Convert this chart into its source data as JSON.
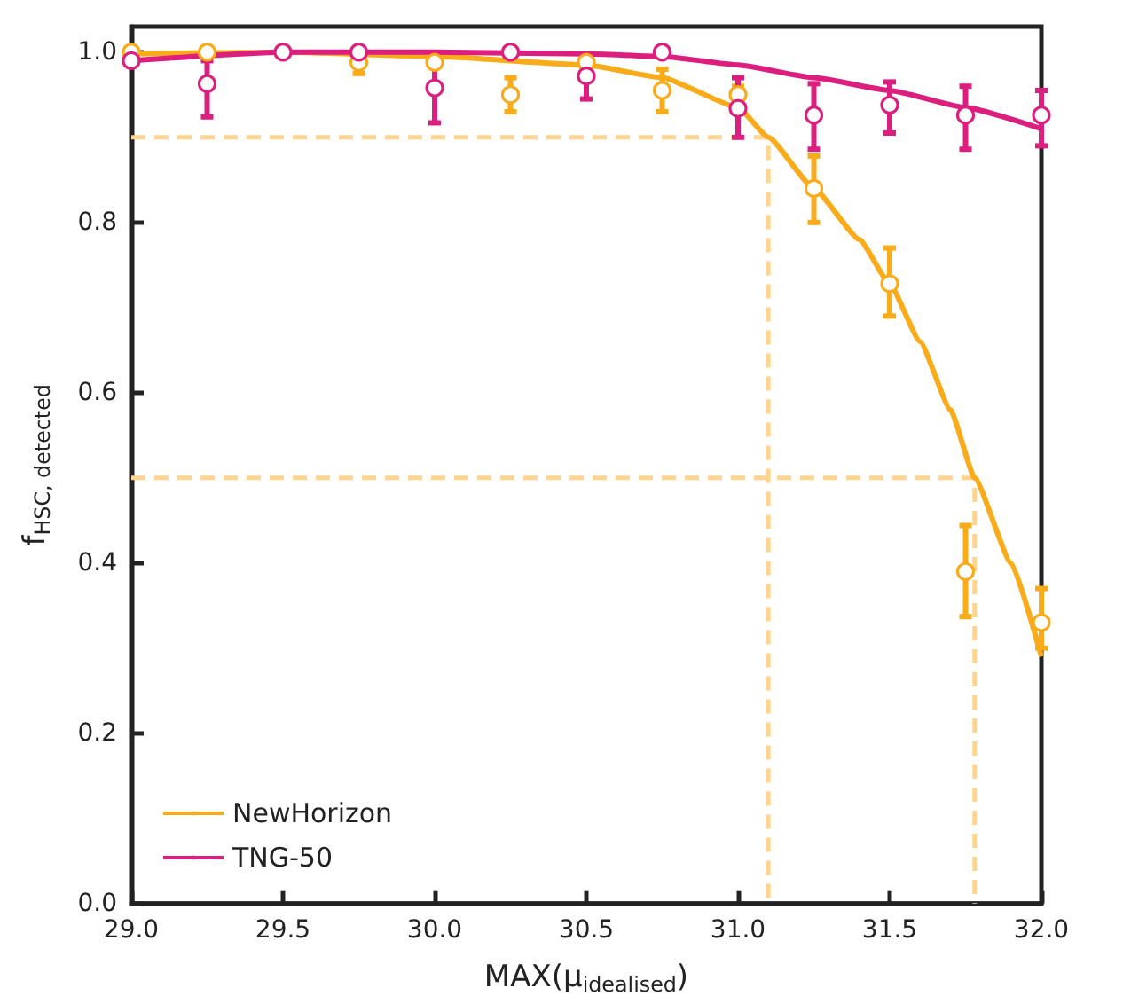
{
  "chart_data": {
    "type": "scatter",
    "xlabel": "MAX(μ$_{idealised}$)",
    "ylabel": "f$_{HSC, detected}$",
    "xlim": [
      29,
      32
    ],
    "ylim": [
      0,
      1.03
    ],
    "xticks": [
      {
        "value": 29,
        "label": "29.0"
      },
      {
        "value": 29.5,
        "label": "29.5"
      },
      {
        "value": 30,
        "label": "30.0"
      },
      {
        "value": 30.5,
        "label": "30.5"
      },
      {
        "value": 31,
        "label": "31.0"
      },
      {
        "value": 31.5,
        "label": "31.5"
      },
      {
        "value": 32,
        "label": "32.0"
      }
    ],
    "yticks": [
      {
        "value": 0,
        "label": "0.0"
      },
      {
        "value": 0.2,
        "label": "0.2"
      },
      {
        "value": 0.4,
        "label": "0.4"
      },
      {
        "value": 0.6,
        "label": "0.6"
      },
      {
        "value": 0.8,
        "label": "0.8"
      },
      {
        "value": 1,
        "label": "1.0"
      }
    ],
    "grid": false,
    "legend": "bottom left",
    "marker": "circle",
    "series": [
      {
        "type": "line",
        "line_style": "dashed",
        "marker": "none",
        "color": "#fed490",
        "x": [
          29,
          31.1,
          31.1
        ],
        "values": [
          0.9,
          0.9,
          0
        ]
      },
      {
        "type": "line",
        "line_style": "dashed",
        "marker": "none",
        "color": "#fed490",
        "x": [
          29,
          31.78,
          31.78
        ],
        "values": [
          0.5,
          0.5,
          0
        ]
      },
      {
        "type": "line",
        "name": "NewHorizon",
        "line_style": "solid",
        "marker": "none",
        "color": "#f9ab1a",
        "x": [
          29,
          29.5,
          30,
          30.5,
          30.75,
          31,
          31.1,
          31.25,
          31.4,
          31.5,
          31.6,
          31.7,
          31.78,
          31.9,
          32
        ],
        "values": [
          0.998,
          1.0,
          0.995,
          0.985,
          0.97,
          0.935,
          0.9,
          0.84,
          0.78,
          0.728,
          0.66,
          0.58,
          0.5,
          0.4,
          0.29
        ]
      },
      {
        "type": "line",
        "name": "TNG-50",
        "line_style": "solid",
        "marker": "none",
        "color": "#dc1f7f",
        "x": [
          29,
          29.5,
          30,
          30.5,
          30.75,
          31,
          31.25,
          31.5,
          31.75,
          32
        ],
        "values": [
          0.99,
          1.0,
          1.0,
          0.998,
          0.995,
          0.985,
          0.97,
          0.955,
          0.935,
          0.91
        ]
      },
      {
        "color": "#f9ab1a",
        "x": [
          29,
          29.25,
          29.5,
          29.75,
          30,
          30.25,
          30.5,
          30.75,
          31,
          31.25,
          31.5,
          31.75,
          32
        ],
        "values": [
          1.0,
          1.0,
          null,
          0.988,
          0.988,
          0.95,
          0.988,
          0.955,
          0.95,
          0.84,
          0.728,
          0.39,
          0.33
        ],
        "errors": [
          null,
          null,
          null,
          [
            0.975,
            1.0
          ],
          null,
          [
            0.93,
            0.97
          ],
          null,
          [
            0.93,
            0.98
          ],
          [
            0.94,
            0.96
          ],
          [
            0.8,
            0.878
          ],
          [
            0.69,
            0.77
          ],
          [
            0.337,
            0.444
          ],
          [
            0.3,
            0.37
          ]
        ]
      },
      {
        "color": "#dc1f7f",
        "x": [
          29,
          29.25,
          29.5,
          29.75,
          30,
          30.25,
          30.5,
          30.75,
          31,
          31.25,
          31.5,
          31.75,
          32
        ],
        "values": [
          0.99,
          0.963,
          1.0,
          1.0,
          0.958,
          1.0,
          0.972,
          1.0,
          0.934,
          0.926,
          0.938,
          0.926,
          0.926
        ],
        "errors": [
          null,
          [
            0.924,
            0.99
          ],
          null,
          null,
          [
            0.917,
            0.99
          ],
          null,
          [
            0.945,
            0.99
          ],
          null,
          [
            0.9,
            0.97
          ],
          [
            0.886,
            0.963
          ],
          [
            0.905,
            0.965
          ],
          [
            0.886,
            0.96
          ],
          [
            0.89,
            0.955
          ]
        ]
      }
    ]
  }
}
